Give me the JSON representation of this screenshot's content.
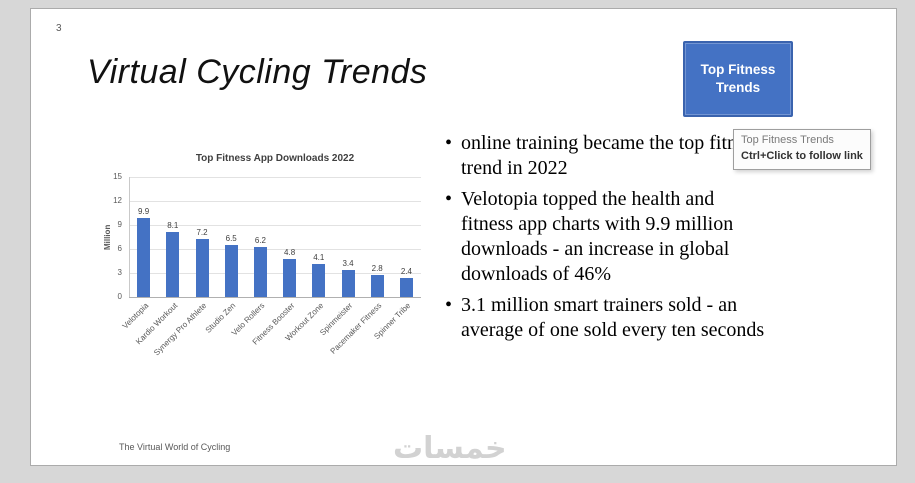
{
  "slide": {
    "number": "3",
    "title": "Virtual Cycling Trends",
    "footer": "The Virtual World of Cycling",
    "watermark": "خمسات"
  },
  "action_button": {
    "label": "Top Fitness Trends"
  },
  "tooltip": {
    "line1": "Top Fitness Trends",
    "line2": "Ctrl+Click to follow link"
  },
  "bullets": [
    "online training became the top fitness trend in 2022",
    "Velotopia topped the health and fitness app charts with 9.9 million downloads - an increase in global downloads of 46%",
    "3.1 million smart trainers sold - an average of one sold every ten seconds"
  ],
  "chart_data": {
    "type": "bar",
    "title": "Top Fitness App Downloads 2022",
    "ylabel": "Million",
    "xlabel": "",
    "ylim": [
      0,
      15
    ],
    "yticks": [
      0,
      3,
      6,
      9,
      12,
      15
    ],
    "categories": [
      "Velotopia",
      "Kardio Workout",
      "Synergy Pro Athlete",
      "Studio Zen",
      "Velo Rollers",
      "Fitness Booster",
      "Workout Zone",
      "Spinmeister",
      "Pacemaker Fitness",
      "Spinner Tribe"
    ],
    "values": [
      9.9,
      8.1,
      7.2,
      6.5,
      6.2,
      4.8,
      4.1,
      3.4,
      2.8,
      2.4
    ],
    "bar_color": "#4472C4",
    "grid": true,
    "legend": "none"
  },
  "colors": {
    "accent": "#4472C4",
    "slide_bg": "#ffffff",
    "canvas_bg": "#d7d7d7"
  }
}
